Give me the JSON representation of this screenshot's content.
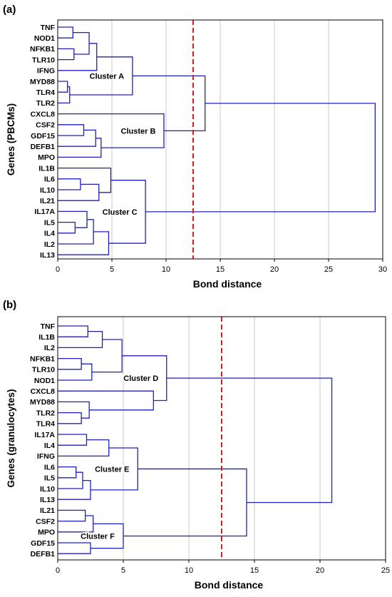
{
  "chart_data": [
    {
      "type": "dendrogram",
      "panel_label": "(a)",
      "xlabel": "Bond distance",
      "ylabel": "Genes (PBCMs)",
      "xlim": [
        0,
        30
      ],
      "xticks": [
        0,
        5,
        10,
        15,
        20,
        25,
        30
      ],
      "grid": true,
      "cut_line": 12.5,
      "leaves": [
        "TNF",
        "NOD1",
        "NFKB1",
        "TLR10",
        "IFNG",
        "MYD88",
        "TLR4",
        "TLR2",
        "CXCL8",
        "CSF2",
        "GDF15",
        "DEFB1",
        "MPO",
        "IL1B",
        "IL6",
        "IL10",
        "IL21",
        "IL17A",
        "IL5",
        "IL4",
        "IL2",
        "IL13"
      ],
      "merges": [
        {
          "id": "n1",
          "a": "TNF",
          "b": "NOD1",
          "height": 1.4
        },
        {
          "id": "n2",
          "a": "NFKB1",
          "b": "TLR10",
          "height": 1.5
        },
        {
          "id": "n3",
          "a": "n1",
          "b": "n2",
          "height": 2.9
        },
        {
          "id": "n4",
          "a": "n3",
          "b": "IFNG",
          "height": 3.6
        },
        {
          "id": "n5",
          "a": "MYD88",
          "b": "TLR4",
          "height": 0.9
        },
        {
          "id": "n6",
          "a": "n5",
          "b": "TLR2",
          "height": 1.1
        },
        {
          "id": "n7",
          "a": "n4",
          "b": "n6",
          "height": 6.9
        },
        {
          "id": "n8",
          "a": "CSF2",
          "b": "GDF15",
          "height": 2.4
        },
        {
          "id": "n9",
          "a": "n8",
          "b": "DEFB1",
          "height": 3.5
        },
        {
          "id": "n10",
          "a": "n9",
          "b": "MPO",
          "height": 4.0
        },
        {
          "id": "n11",
          "a": "CXCL8",
          "b": "n10",
          "height": 9.8
        },
        {
          "id": "n12",
          "a": "n7",
          "b": "n11",
          "height": 13.6
        },
        {
          "id": "n13",
          "a": "IL6",
          "b": "IL10",
          "height": 2.1
        },
        {
          "id": "n14",
          "a": "n13",
          "b": "IL21",
          "height": 3.8
        },
        {
          "id": "n15",
          "a": "IL1B",
          "b": "n14",
          "height": 4.9
        },
        {
          "id": "n16",
          "a": "IL5",
          "b": "IL4",
          "height": 1.6
        },
        {
          "id": "n17",
          "a": "IL17A",
          "b": "n16",
          "height": 2.7
        },
        {
          "id": "n18",
          "a": "n17",
          "b": "IL2",
          "height": 3.3
        },
        {
          "id": "n19",
          "a": "n18",
          "b": "IL13",
          "height": 4.7
        },
        {
          "id": "n20",
          "a": "n15",
          "b": "n19",
          "height": 8.1
        },
        {
          "id": "n21",
          "a": "n12",
          "b": "n20",
          "height": 29.3
        }
      ],
      "clusters": [
        {
          "label": "Cluster A",
          "node": "n7"
        },
        {
          "label": "Cluster B",
          "node": "n11"
        },
        {
          "label": "Cluster C",
          "node": "n20"
        }
      ]
    },
    {
      "type": "dendrogram",
      "panel_label": "(b)",
      "xlabel": "Bond distance",
      "ylabel": "Genes (granulocytes)",
      "xlim": [
        0,
        25
      ],
      "xticks": [
        0,
        5,
        10,
        15,
        20,
        25
      ],
      "grid": true,
      "cut_line": 12.5,
      "leaves": [
        "TNF",
        "IL1B",
        "IL2",
        "NFKB1",
        "TLR10",
        "NOD1",
        "CXCL8",
        "MYD88",
        "TLR2",
        "TLR4",
        "IL17A",
        "IL4",
        "IFNG",
        "IL6",
        "IL5",
        "IL10",
        "IL13",
        "IL21",
        "CSF2",
        "MPO",
        "GDF15",
        "DEFB1"
      ],
      "merges": [
        {
          "id": "m1",
          "a": "TNF",
          "b": "IL1B",
          "height": 2.3
        },
        {
          "id": "m2",
          "a": "m1",
          "b": "IL2",
          "height": 3.4
        },
        {
          "id": "m3",
          "a": "NFKB1",
          "b": "TLR10",
          "height": 1.8
        },
        {
          "id": "m4",
          "a": "m3",
          "b": "NOD1",
          "height": 2.6
        },
        {
          "id": "m5",
          "a": "m2",
          "b": "m4",
          "height": 4.9
        },
        {
          "id": "m6",
          "a": "TLR2",
          "b": "TLR4",
          "height": 1.8
        },
        {
          "id": "m7",
          "a": "MYD88",
          "b": "m6",
          "height": 2.4
        },
        {
          "id": "m8",
          "a": "CXCL8",
          "b": "m7",
          "height": 7.3
        },
        {
          "id": "m9",
          "a": "m5",
          "b": "m8",
          "height": 8.3
        },
        {
          "id": "m10",
          "a": "IL17A",
          "b": "IL4",
          "height": 2.2
        },
        {
          "id": "m11",
          "a": "m10",
          "b": "IFNG",
          "height": 3.9
        },
        {
          "id": "m12",
          "a": "IL6",
          "b": "IL5",
          "height": 1.4
        },
        {
          "id": "m13",
          "a": "m12",
          "b": "IL10",
          "height": 1.9
        },
        {
          "id": "m14",
          "a": "m13",
          "b": "IL13",
          "height": 2.5
        },
        {
          "id": "m15",
          "a": "m11",
          "b": "m14",
          "height": 6.1
        },
        {
          "id": "m16",
          "a": "IL21",
          "b": "CSF2",
          "height": 2.1
        },
        {
          "id": "m17",
          "a": "m16",
          "b": "MPO",
          "height": 2.7
        },
        {
          "id": "m18",
          "a": "GDF15",
          "b": "DEFB1",
          "height": 2.5
        },
        {
          "id": "m19",
          "a": "m17",
          "b": "m18",
          "height": 5.0
        },
        {
          "id": "m20",
          "a": "m15",
          "b": "m19",
          "height": 14.4
        },
        {
          "id": "m21",
          "a": "m9",
          "b": "m20",
          "height": 20.9
        }
      ],
      "clusters": [
        {
          "label": "Cluster D",
          "node": "m9"
        },
        {
          "label": "Cluster E",
          "node": "m15"
        },
        {
          "label": "Cluster F",
          "node": "m19"
        }
      ]
    }
  ],
  "colors": {
    "branch": "#1f1fbf",
    "cut_line": "#e8181a",
    "grid": "#c9c9c9",
    "axis": "#000000"
  }
}
